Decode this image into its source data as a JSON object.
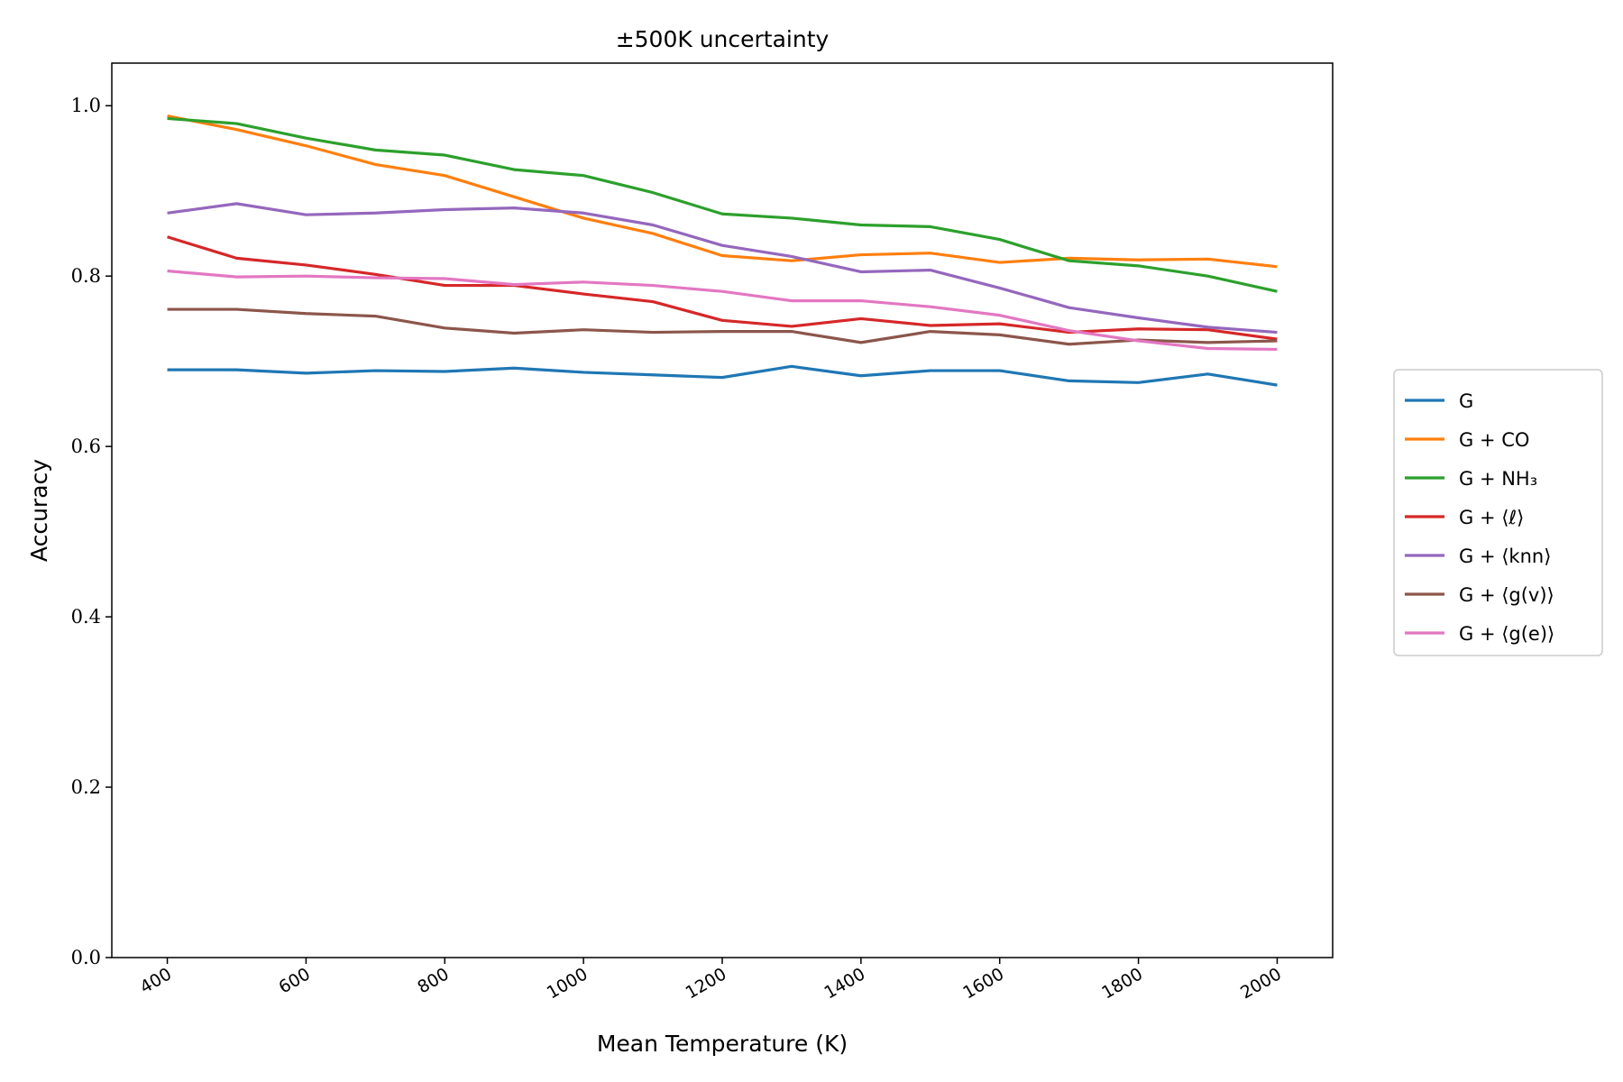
{
  "chart_data": {
    "type": "line",
    "title": "±500K uncertainty",
    "xlabel": "Mean Temperature (K)",
    "ylabel": "Accuracy",
    "xlim": [
      320,
      2080
    ],
    "ylim": [
      0.0,
      1.05
    ],
    "xticks": [
      400,
      600,
      800,
      1000,
      1200,
      1400,
      1600,
      1800,
      2000
    ],
    "xtick_labels": [
      "400",
      "600",
      "800",
      "1000",
      "1200",
      "1400",
      "1600",
      "1800",
      "2000"
    ],
    "yticks": [
      0.0,
      0.2,
      0.4,
      0.6,
      0.8,
      1.0
    ],
    "ytick_labels": [
      "0.0",
      "0.2",
      "0.4",
      "0.6",
      "0.8",
      "1.0"
    ],
    "grid": false,
    "legend_placement": "right, outside",
    "x": [
      400,
      500,
      600,
      700,
      800,
      900,
      1000,
      1100,
      1200,
      1300,
      1400,
      1500,
      1600,
      1700,
      1800,
      1900,
      2000
    ],
    "series": [
      {
        "name": "G",
        "color": "#1f77b4",
        "values": [
          0.69,
          0.69,
          0.686,
          0.689,
          0.688,
          0.692,
          0.687,
          0.684,
          0.681,
          0.694,
          0.683,
          0.689,
          0.689,
          0.677,
          0.675,
          0.685,
          0.672
        ]
      },
      {
        "name": "G + CO",
        "color": "#ff7f0e",
        "values": [
          0.988,
          0.972,
          0.953,
          0.931,
          0.918,
          0.893,
          0.868,
          0.85,
          0.824,
          0.818,
          0.825,
          0.827,
          0.816,
          0.821,
          0.819,
          0.82,
          0.811
        ]
      },
      {
        "name": "G + NH₃",
        "color": "#2ca02c",
        "values": [
          0.985,
          0.979,
          0.962,
          0.948,
          0.942,
          0.925,
          0.918,
          0.898,
          0.873,
          0.868,
          0.86,
          0.858,
          0.843,
          0.818,
          0.812,
          0.8,
          0.782
        ]
      },
      {
        "name": "G + ⟨ℓ⟩",
        "color": "#d62728",
        "values": [
          0.846,
          0.821,
          0.813,
          0.802,
          0.789,
          0.789,
          0.779,
          0.77,
          0.748,
          0.741,
          0.75,
          0.742,
          0.744,
          0.734,
          0.738,
          0.737,
          0.726
        ]
      },
      {
        "name": "G + ⟨knn⟩",
        "color": "#9467bd",
        "values": [
          0.874,
          0.885,
          0.872,
          0.874,
          0.878,
          0.88,
          0.874,
          0.86,
          0.836,
          0.823,
          0.805,
          0.807,
          0.786,
          0.763,
          0.751,
          0.74,
          0.734
        ]
      },
      {
        "name": "G + ⟨g(v)⟩",
        "color": "#8c564b",
        "values": [
          0.761,
          0.761,
          0.756,
          0.753,
          0.739,
          0.733,
          0.737,
          0.734,
          0.735,
          0.735,
          0.722,
          0.735,
          0.731,
          0.72,
          0.725,
          0.722,
          0.724
        ]
      },
      {
        "name": "G + ⟨g(e)⟩",
        "color": "#e377c2",
        "values": [
          0.806,
          0.799,
          0.8,
          0.798,
          0.797,
          0.79,
          0.793,
          0.789,
          0.782,
          0.771,
          0.771,
          0.764,
          0.754,
          0.736,
          0.724,
          0.715,
          0.714
        ]
      }
    ]
  }
}
